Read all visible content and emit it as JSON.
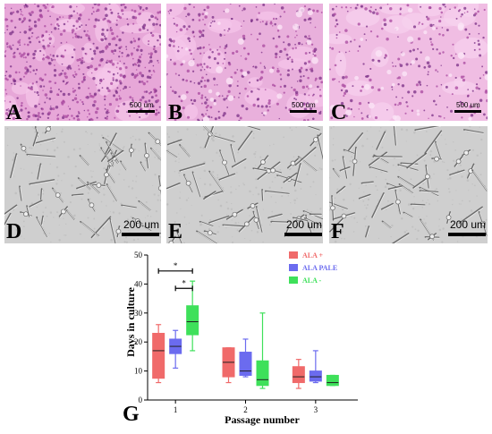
{
  "panels": [
    {
      "label": "A",
      "scale": "500 um",
      "kind": "he"
    },
    {
      "label": "B",
      "scale": "500 um",
      "kind": "he"
    },
    {
      "label": "C",
      "scale": "500 um",
      "kind": "he"
    },
    {
      "label": "D",
      "scale": "200 um",
      "kind": "phase"
    },
    {
      "label": "E",
      "scale": "200 um",
      "kind": "phase"
    },
    {
      "label": "F",
      "scale": "200 um",
      "kind": "phase"
    }
  ],
  "chart_label": "G",
  "chart_data": {
    "type": "boxplot",
    "categories": [
      "1",
      "2",
      "3"
    ],
    "xlabel": "Passage number",
    "ylabel": "Days in culture",
    "ylim": [
      0,
      50
    ],
    "yticks": [
      0,
      10,
      20,
      30,
      40,
      50
    ],
    "legend_position": "top-right",
    "significance": [
      {
        "from_series": "ALA +",
        "to_series": "ALA -",
        "category": "1",
        "label": "*"
      },
      {
        "from_series": "ALA PALE",
        "to_series": "ALA -",
        "category": "1",
        "label": "*"
      }
    ],
    "series": [
      {
        "name": "ALA +",
        "color": "#f06a6a",
        "boxes": [
          {
            "min": 6,
            "q1": 7.5,
            "median": 17,
            "q3": 23,
            "max": 26
          },
          {
            "min": 6,
            "q1": 8,
            "median": 13,
            "q3": 18,
            "max": 18
          },
          {
            "min": 4,
            "q1": 6,
            "median": 8,
            "q3": 11.5,
            "max": 14
          }
        ]
      },
      {
        "name": "ALA PALE",
        "color": "#6b6bef",
        "boxes": [
          {
            "min": 11,
            "q1": 16,
            "median": 18.5,
            "q3": 21,
            "max": 24
          },
          {
            "min": 8,
            "q1": 8.5,
            "median": 10,
            "q3": 16.5,
            "max": 21
          },
          {
            "min": 6,
            "q1": 6.5,
            "median": 8,
            "q3": 10,
            "max": 17
          }
        ]
      },
      {
        "name": "ALA -",
        "color": "#3ee05a",
        "boxes": [
          {
            "min": 17,
            "q1": 22.5,
            "median": 27,
            "q3": 32.5,
            "max": 41
          },
          {
            "min": 4,
            "q1": 5,
            "median": 7,
            "q3": 13.5,
            "max": 30
          },
          {
            "min": 5,
            "q1": 5,
            "median": 6,
            "q3": 8.5,
            "max": 8.5
          }
        ]
      }
    ]
  }
}
